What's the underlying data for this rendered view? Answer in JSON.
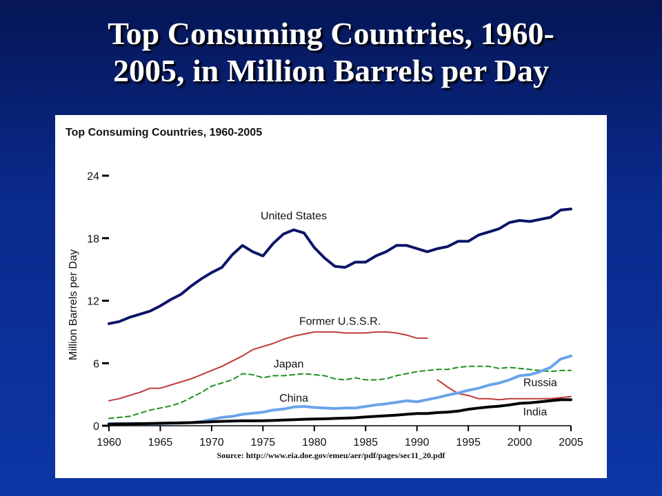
{
  "slide": {
    "title_line1": "Top Consuming Countries, 1960-",
    "title_line2": "2005, in Million Barrels per Day"
  },
  "chart_data": {
    "type": "line",
    "title": "Top Consuming Countries, 1960-2005",
    "ylabel": "Million Barrels per Day",
    "xlabel": "",
    "source": "Source: http://www.eia.doe.gov/emeu/aer/pdf/pages/sec11_20.pdf",
    "xlim": [
      1960,
      2005
    ],
    "ylim": [
      0,
      24
    ],
    "x_ticks": [
      1960,
      1965,
      1970,
      1975,
      1980,
      1985,
      1990,
      1995,
      2000,
      2005
    ],
    "y_ticks": [
      0,
      6,
      12,
      18,
      24
    ],
    "grid": false,
    "legend": "inline labels",
    "series": [
      {
        "name": "United States",
        "color": "#0c1467",
        "style": "solid",
        "width": 4,
        "label_at": [
          1978,
          19.8
        ],
        "x": [
          1960,
          1961,
          1962,
          1963,
          1964,
          1965,
          1966,
          1967,
          1968,
          1969,
          1970,
          1971,
          1972,
          1973,
          1974,
          1975,
          1976,
          1977,
          1978,
          1979,
          1980,
          1981,
          1982,
          1983,
          1984,
          1985,
          1986,
          1987,
          1988,
          1989,
          1990,
          1991,
          1992,
          1993,
          1994,
          1995,
          1996,
          1997,
          1998,
          1999,
          2000,
          2001,
          2002,
          2003,
          2004,
          2005
        ],
        "values": [
          9.8,
          10.0,
          10.4,
          10.7,
          11.0,
          11.5,
          12.1,
          12.6,
          13.4,
          14.1,
          14.7,
          15.2,
          16.4,
          17.3,
          16.7,
          16.3,
          17.5,
          18.4,
          18.8,
          18.5,
          17.1,
          16.1,
          15.3,
          15.2,
          15.7,
          15.7,
          16.3,
          16.7,
          17.3,
          17.3,
          17.0,
          16.7,
          17.0,
          17.2,
          17.7,
          17.7,
          18.3,
          18.6,
          18.9,
          19.5,
          19.7,
          19.6,
          19.8,
          20.0,
          20.7,
          20.8
        ]
      },
      {
        "name": "Former U.S.S.R.",
        "color": "#c0393b",
        "style": "solid",
        "width": 2,
        "label_at": [
          1982.5,
          9.7
        ],
        "x": [
          1960,
          1961,
          1962,
          1963,
          1964,
          1965,
          1966,
          1967,
          1968,
          1969,
          1970,
          1971,
          1972,
          1973,
          1974,
          1975,
          1976,
          1977,
          1978,
          1979,
          1980,
          1981,
          1982,
          1983,
          1984,
          1985,
          1986,
          1987,
          1988,
          1989,
          1990,
          1991
        ],
        "values": [
          2.4,
          2.6,
          2.9,
          3.2,
          3.6,
          3.6,
          3.9,
          4.2,
          4.5,
          4.9,
          5.3,
          5.7,
          6.2,
          6.7,
          7.3,
          7.6,
          7.9,
          8.3,
          8.6,
          8.8,
          9.0,
          9.0,
          9.0,
          8.9,
          8.9,
          8.9,
          9.0,
          9.0,
          8.9,
          8.7,
          8.4,
          8.4
        ]
      },
      {
        "name": "Japan",
        "color": "#1f8f1f",
        "style": "dashed",
        "width": 2,
        "label_at": [
          1977.5,
          5.6
        ],
        "x": [
          1960,
          1961,
          1962,
          1963,
          1964,
          1965,
          1966,
          1967,
          1968,
          1969,
          1970,
          1971,
          1972,
          1973,
          1974,
          1975,
          1976,
          1977,
          1978,
          1979,
          1980,
          1981,
          1982,
          1983,
          1984,
          1985,
          1986,
          1987,
          1988,
          1989,
          1990,
          1991,
          1992,
          1993,
          1994,
          1995,
          1996,
          1997,
          1998,
          1999,
          2000,
          2001,
          2002,
          2003,
          2004,
          2005
        ],
        "values": [
          0.7,
          0.8,
          0.9,
          1.2,
          1.5,
          1.7,
          1.9,
          2.2,
          2.7,
          3.2,
          3.8,
          4.1,
          4.4,
          5.0,
          4.9,
          4.6,
          4.8,
          4.8,
          4.9,
          5.0,
          4.9,
          4.8,
          4.5,
          4.4,
          4.6,
          4.4,
          4.4,
          4.5,
          4.8,
          5.0,
          5.2,
          5.3,
          5.4,
          5.4,
          5.6,
          5.7,
          5.7,
          5.7,
          5.5,
          5.6,
          5.5,
          5.4,
          5.3,
          5.2,
          5.3,
          5.3
        ]
      },
      {
        "name": "Russia",
        "color": "#c0393b",
        "style": "solid",
        "width": 2,
        "label_at": [
          2002,
          3.8
        ],
        "x": [
          1992,
          1993,
          1994,
          1995,
          1996,
          1997,
          1998,
          1999,
          2000,
          2001,
          2002,
          2003,
          2004,
          2005
        ],
        "values": [
          4.4,
          3.7,
          3.1,
          2.9,
          2.6,
          2.6,
          2.5,
          2.6,
          2.6,
          2.6,
          2.6,
          2.6,
          2.7,
          2.8
        ]
      },
      {
        "name": "China",
        "color": "#6aa3ea",
        "style": "solid",
        "width": 4,
        "label_at": [
          1978,
          2.3
        ],
        "x": [
          1960,
          1961,
          1962,
          1963,
          1964,
          1965,
          1966,
          1967,
          1968,
          1969,
          1970,
          1971,
          1972,
          1973,
          1974,
          1975,
          1976,
          1977,
          1978,
          1979,
          1980,
          1981,
          1982,
          1983,
          1984,
          1985,
          1986,
          1987,
          1988,
          1989,
          1990,
          1991,
          1992,
          1993,
          1994,
          1995,
          1996,
          1997,
          1998,
          1999,
          2000,
          2001,
          2002,
          2003,
          2004,
          2005
        ],
        "values": [
          0.2,
          0.2,
          0.2,
          0.2,
          0.2,
          0.2,
          0.25,
          0.25,
          0.3,
          0.4,
          0.6,
          0.8,
          0.9,
          1.1,
          1.2,
          1.3,
          1.5,
          1.6,
          1.8,
          1.85,
          1.75,
          1.7,
          1.65,
          1.7,
          1.7,
          1.85,
          2.0,
          2.1,
          2.25,
          2.4,
          2.3,
          2.5,
          2.7,
          2.95,
          3.15,
          3.4,
          3.6,
          3.9,
          4.1,
          4.4,
          4.8,
          4.9,
          5.2,
          5.6,
          6.4,
          6.7
        ]
      },
      {
        "name": "India",
        "color": "#000000",
        "style": "solid",
        "width": 4,
        "label_at": [
          2001.5,
          1.0
        ],
        "x": [
          1960,
          1961,
          1962,
          1963,
          1964,
          1965,
          1966,
          1967,
          1968,
          1969,
          1970,
          1971,
          1972,
          1973,
          1974,
          1975,
          1976,
          1977,
          1978,
          1979,
          1980,
          1981,
          1982,
          1983,
          1984,
          1985,
          1986,
          1987,
          1988,
          1989,
          1990,
          1991,
          1992,
          1993,
          1994,
          1995,
          1996,
          1997,
          1998,
          1999,
          2000,
          2001,
          2002,
          2003,
          2004,
          2005
        ],
        "values": [
          0.15,
          0.17,
          0.18,
          0.2,
          0.22,
          0.24,
          0.26,
          0.28,
          0.3,
          0.34,
          0.38,
          0.42,
          0.45,
          0.48,
          0.47,
          0.48,
          0.5,
          0.54,
          0.58,
          0.62,
          0.64,
          0.66,
          0.7,
          0.73,
          0.77,
          0.84,
          0.9,
          0.96,
          1.02,
          1.1,
          1.17,
          1.18,
          1.26,
          1.3,
          1.4,
          1.58,
          1.7,
          1.8,
          1.88,
          2.0,
          2.15,
          2.2,
          2.3,
          2.4,
          2.5,
          2.5
        ]
      }
    ]
  }
}
